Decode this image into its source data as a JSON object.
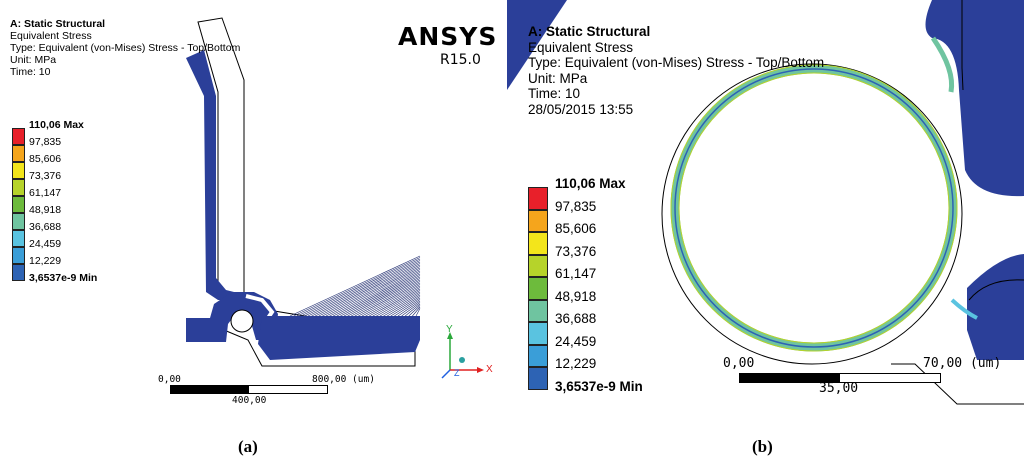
{
  "captions": {
    "a": "(a)",
    "b": "(b)"
  },
  "panel_a": {
    "info": {
      "title": "A: Static Structural",
      "quantity": "Equivalent Stress",
      "type": "Type: Equivalent (von-Mises) Stress - Top/Bottom",
      "unit": "Unit: MPa",
      "time": "Time: 10"
    },
    "logo": "ANSYS",
    "version": "R15.0",
    "scale": {
      "start": "0,00",
      "end": "800,00 (um)",
      "mid": "400,00"
    },
    "triad": {
      "y": "Y",
      "x": "X",
      "z": "Z"
    }
  },
  "panel_b": {
    "info": {
      "title": "A: Static Structural",
      "quantity": "Equivalent Stress",
      "type": "Type: Equivalent (von-Mises) Stress - Top/Bottom",
      "unit": "Unit: MPa",
      "time": "Time: 10",
      "date": "28/05/2015 13:55"
    },
    "scale": {
      "start": "0,00",
      "end": "70,00 (um)",
      "mid": "35,00"
    }
  },
  "legend": {
    "labels": [
      "110,06 Max",
      "97,835",
      "85,606",
      "73,376",
      "61,147",
      "48,918",
      "36,688",
      "24,459",
      "12,229",
      "3,6537e-9 Min"
    ],
    "colors": [
      "#e8202a",
      "#f5a51c",
      "#f3e51b",
      "#b6d32a",
      "#6dbb3c",
      "#6fc4a0",
      "#5ac3e0",
      "#3a9ed8",
      "#2d63b4",
      "#2b3f99"
    ]
  }
}
